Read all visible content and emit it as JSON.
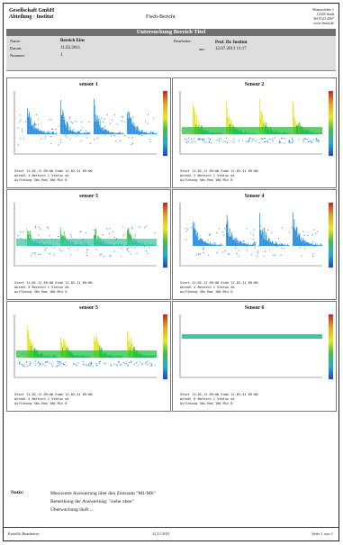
{
  "header": {
    "company": [
      "Gesellschaft GmbH",
      "Abteilung · Institut"
    ],
    "doc_title": "Fisch-Bericht",
    "address": [
      "Musterstraße 1",
      "12345 Stadt",
      "Tel 0123 4567",
      "www.firma.de"
    ]
  },
  "banner": {
    "title": "Untersuchung Bereich Titel"
  },
  "info": {
    "left": [
      {
        "label": "Name:",
        "value": "Bereich Eins"
      },
      {
        "label": "Datum:",
        "value": "11.02.2011"
      },
      {
        "label": "Nummer:",
        "value": "1"
      }
    ],
    "right": [
      {
        "label": "Bearbeiter:",
        "value": "Prof. Dr. Institut"
      },
      {
        "label": "am:",
        "value": "12.07.2011 11:17"
      }
    ]
  },
  "panels": [
    {
      "title": "sensor 1",
      "style": "sparse",
      "info": [
        "Start 11.02.11 09:00  Ende 12.02.11 09:00",
        "Anzahl 1  Bereich 1  Status ok",
        "Auflösung 30s  Max 100  Min 0"
      ]
    },
    {
      "title": "Sensor 2",
      "style": "dense",
      "info": [
        "Start 11.02.11 09:00  Ende 12.02.11 09:00",
        "Anzahl 2  Bereich 1  Status ok",
        "Auflösung 30s  Max 100  Min 0"
      ]
    },
    {
      "title": "sensor 3",
      "style": "flat",
      "info": [
        "Start 11.02.11 09:00  Ende 12.02.11 09:00",
        "Anzahl 3  Bereich 1  Status ok",
        "Auflösung 30s  Max 100  Min 0"
      ]
    },
    {
      "title": "Sensor 4",
      "style": "sparse",
      "info": [
        "Start 11.02.11 09:00  Ende 12.02.11 09:00",
        "Anzahl 4  Bereich 1  Status ok",
        "Auflösung 30s  Max 100  Min 0"
      ]
    },
    {
      "title": "sensor 5",
      "style": "dense",
      "info": [
        "Start 11.02.11 09:00  Ende 12.02.11 09:00",
        "Anzahl 5  Bereich 1  Status ok",
        "Auflösung 30s  Max 100  Min 0"
      ]
    },
    {
      "title": "Sensor 6",
      "style": "empty",
      "info": [
        "Start 11.02.11 09:00  Ende 12.02.11 09:00",
        "Anzahl 6  Bereich 1  Status ok",
        "Auflösung 30s  Max 100  Min 0"
      ]
    }
  ],
  "remarks": {
    "label": "Notiz:",
    "lines": [
      "Messwerte Auswertung über den Zeitraum \"M1-M6\"",
      "Bemerkung der Auswertung: \"siehe oben\"",
      "Überwachung läuft ..."
    ]
  },
  "footer": {
    "left": [
      "Erstellt:",
      "Bearbeitet:"
    ],
    "center": "12.11.2011",
    "right": "Seite 1 von 1"
  },
  "colors": {
    "banner": "#6f6f6f",
    "info_bg": "#dddddd",
    "blue": "#2a8fe0",
    "green": "#2cbf3a",
    "yellow": "#e5e52a"
  }
}
